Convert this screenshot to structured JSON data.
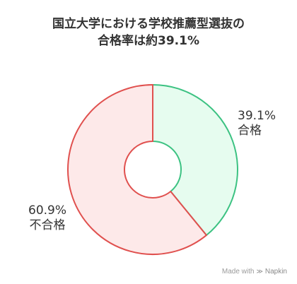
{
  "chart_data": {
    "type": "pie",
    "title_lines": [
      "国立大学における学校推薦型選抜の",
      "合格率は約39.1%"
    ],
    "slices": [
      {
        "pct_label": "39.1%",
        "name": "合格",
        "value": 39.1,
        "fill": "#e6fcef",
        "stroke": "#3cc282"
      },
      {
        "pct_label": "60.9%",
        "name": "不合格",
        "value": 60.9,
        "fill": "#fde9e9",
        "stroke": "#e0504e"
      }
    ]
  },
  "watermark": {
    "prefix": "Made with",
    "brand": "Napkin"
  }
}
